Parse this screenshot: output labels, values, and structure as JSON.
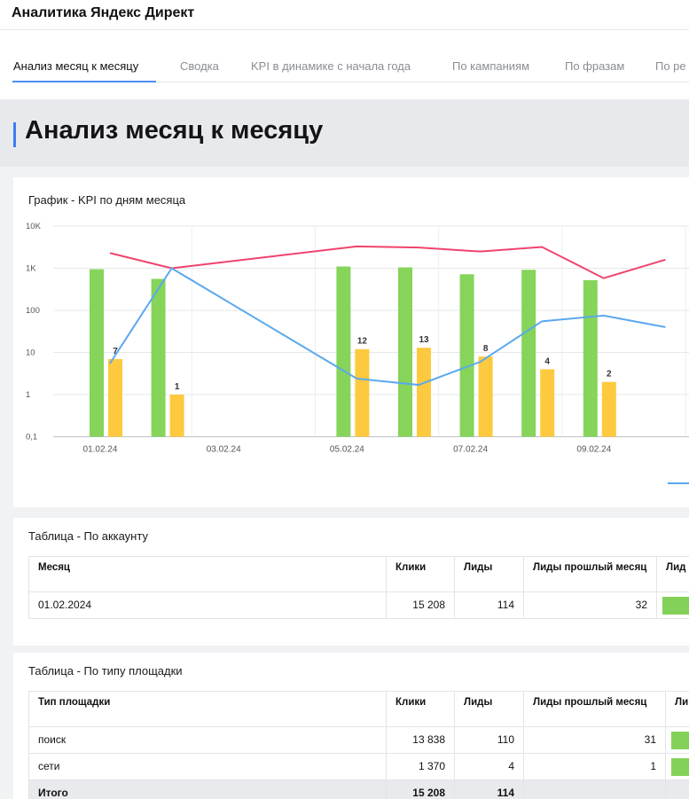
{
  "app": {
    "title": "Аналитика Яндекс Директ"
  },
  "tabs": [
    {
      "label": "Анализ месяц к месяцу",
      "active": true
    },
    {
      "label": "Сводка",
      "active": false
    },
    {
      "label": "KPI в динамике с начала года",
      "active": false
    },
    {
      "label": "По кампаниям",
      "active": false
    },
    {
      "label": "По фразам",
      "active": false
    },
    {
      "label": "По ре",
      "active": false
    }
  ],
  "page": {
    "title": "Анализ месяц к месяцу"
  },
  "chart_section": {
    "title": "График - KPI по дням месяца"
  },
  "chart_data": {
    "type": "bar",
    "title": "График - KPI по дням месяца",
    "y_scale": "log",
    "ylim": [
      0.1,
      10000
    ],
    "y_tick_labels": [
      "10K",
      "1K",
      "100",
      "10",
      "1",
      "0,1"
    ],
    "x_tick_labels": [
      "01.02.24",
      "03.02.24",
      "05.02.24",
      "07.02.24",
      "09.02.24"
    ],
    "grid": true,
    "categories": [
      "01.02.24",
      "02.02.24",
      "05.02.24",
      "06.02.24",
      "07.02.24",
      "08.02.24",
      "09.02.24"
    ],
    "series": [
      {
        "kind": "bar",
        "color": "#86d45a",
        "values": [
          950,
          560,
          1100,
          1050,
          720,
          920,
          520
        ]
      },
      {
        "kind": "bar",
        "color": "#fdc93e",
        "values": [
          7,
          1,
          12,
          13,
          8,
          4,
          2
        ],
        "labels": [
          "7",
          "1",
          "12",
          "13",
          "8",
          "4",
          "2"
        ]
      },
      {
        "kind": "line",
        "color": "#f0436c",
        "points": [
          [
            "01.02.24",
            2300
          ],
          [
            "02.02.24",
            1000
          ],
          [
            "05.02.24",
            3300
          ],
          [
            "06.02.24",
            3100
          ],
          [
            "07.02.24",
            2500
          ],
          [
            "08.02.24",
            3200
          ],
          [
            "09.02.24",
            580
          ],
          [
            "10.02.24",
            1600
          ]
        ]
      },
      {
        "kind": "line",
        "color": "#5aa8ee",
        "points": [
          [
            "01.02.24",
            5.5
          ],
          [
            "02.02.24",
            1000
          ],
          [
            "05.02.24",
            2.4
          ],
          [
            "06.02.24",
            1.7
          ],
          [
            "07.02.24",
            6
          ],
          [
            "08.02.24",
            55
          ],
          [
            "09.02.24",
            75
          ],
          [
            "10.02.24",
            40
          ]
        ]
      }
    ],
    "legend": {
      "placement": "bottom-right",
      "color": "#5aa8ee"
    }
  },
  "account_table": {
    "title": "Таблица - По аккаунту",
    "headers": [
      "Месяц",
      "Клики",
      "Лиды",
      "Лиды прошлый месяц",
      "Лид"
    ],
    "rows": [
      [
        "01.02.2024",
        "15 208",
        "114",
        "32",
        ""
      ]
    ]
  },
  "type_table": {
    "title": "Таблица - По типу площадки",
    "headers": [
      "Тип площадки",
      "Клики",
      "Лиды",
      "Лиды прошлый месяц",
      "Ли %"
    ],
    "rows": [
      [
        "поиск",
        "13 838",
        "110",
        "31",
        ""
      ],
      [
        "сети",
        "1 370",
        "4",
        "1",
        ""
      ]
    ],
    "total": [
      "Итого",
      "15 208",
      "114",
      "",
      ""
    ]
  }
}
